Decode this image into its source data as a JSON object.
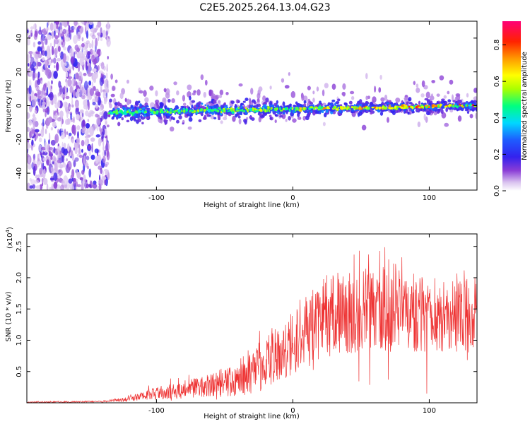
{
  "title": "C2E5.2025.264.13.04.G23",
  "colors": {
    "line": "#ee3333",
    "axis": "#000000",
    "background": "#ffffff"
  },
  "chart_data": [
    {
      "type": "heatmap",
      "name": "spectrogram",
      "xlabel": "Height of straight line (km)",
      "ylabel": "Frequency (Hz)",
      "xlim": [
        -195,
        135
      ],
      "ylim": [
        -50,
        50
      ],
      "xticks": [
        -100,
        0,
        100
      ],
      "yticks": [
        -40,
        -20,
        0,
        20,
        40
      ],
      "colorbar": {
        "label": "Normalized spectral amplitude",
        "range": [
          0,
          0.93
        ],
        "ticks": [
          0.0,
          0.2,
          0.4,
          0.6,
          0.8
        ]
      },
      "regions": [
        {
          "description": "noise",
          "x_range": [
            -195,
            -135
          ],
          "freq_range": [
            -50,
            50
          ],
          "amplitude": 0.1
        },
        {
          "description": "signal band",
          "x_range": [
            -135,
            135
          ],
          "center_freq_hz": [
            -4,
            0
          ],
          "half_width_hz": [
            6,
            3
          ],
          "amplitude_range": [
            0.3,
            0.93
          ]
        }
      ]
    },
    {
      "type": "line",
      "name": "snr",
      "xlabel": "Height of straight line (km)",
      "ylabel": "SNR (10 * v/v)",
      "scale_label": "(x10",
      "scale_exp": "4",
      "scale_close": ")",
      "xlim": [
        -195,
        135
      ],
      "ylim": [
        0,
        2.7
      ],
      "xticks": [
        -100,
        0,
        100
      ],
      "yticks": [
        0.5,
        1.0,
        1.5,
        2.0,
        2.5
      ],
      "envelope": {
        "x": [
          -195,
          -140,
          -120,
          -100,
          -80,
          -60,
          -40,
          -20,
          0,
          20,
          40,
          60,
          80,
          100,
          120,
          135
        ],
        "mean": [
          0.01,
          0.02,
          0.06,
          0.15,
          0.22,
          0.28,
          0.4,
          0.65,
          1.0,
          1.35,
          1.45,
          1.5,
          1.45,
          1.4,
          1.4,
          1.4
        ],
        "noise_amplitude": [
          0.01,
          0.01,
          0.04,
          0.1,
          0.15,
          0.18,
          0.3,
          0.45,
          0.55,
          0.65,
          0.7,
          0.7,
          0.65,
          0.6,
          0.6,
          0.6
        ],
        "max": [
          0.03,
          0.03,
          0.15,
          0.35,
          0.5,
          0.65,
          0.9,
          1.4,
          1.9,
          2.45,
          2.7,
          2.55,
          2.4,
          2.2,
          2.5,
          2.4
        ]
      }
    }
  ]
}
